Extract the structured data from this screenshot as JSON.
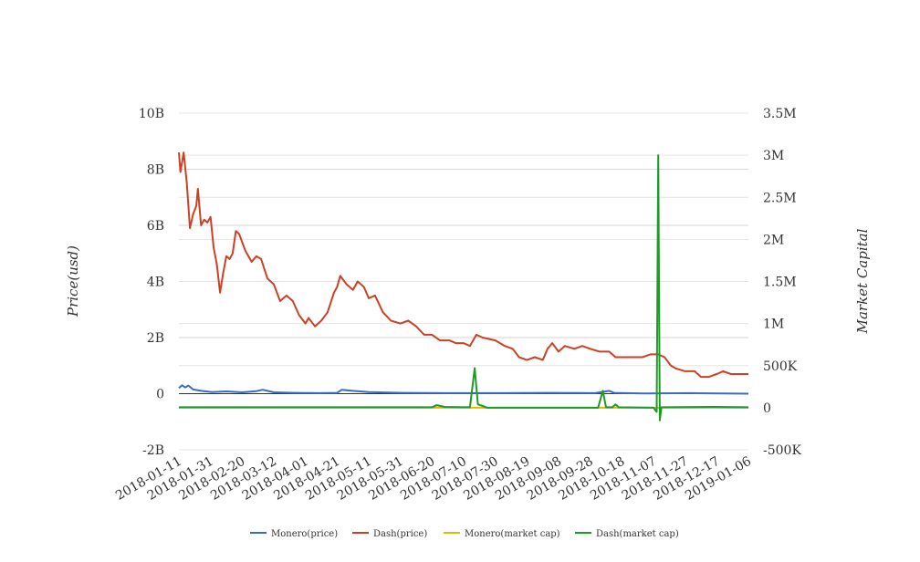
{
  "chart_data": {
    "type": "line",
    "title": "",
    "ylabel_left": "Price(usd)",
    "ylabel_right": "Market Capital",
    "grid": true,
    "legend_position": "bottom",
    "x_start": "2018-01-11",
    "x_end": "2019-01-06",
    "x_ticks": [
      "2018-01-11",
      "2018-01-31",
      "2018-02-20",
      "2018-03-12",
      "2018-04-01",
      "2018-04-21",
      "2018-05-11",
      "2018-05-31",
      "2018-06-20",
      "2018-07-10",
      "2018-07-30",
      "2018-08-19",
      "2018-09-08",
      "2018-09-28",
      "2018-10-18",
      "2018-11-07",
      "2018-11-27",
      "2018-12-17",
      "2019-01-06"
    ],
    "y_left": {
      "range": [
        -2000000000,
        10000000000
      ],
      "ticks": [
        -2000000000,
        0,
        2000000000,
        4000000000,
        6000000000,
        8000000000,
        10000000000
      ],
      "tick_labels": [
        "-2B",
        "0",
        "2B",
        "4B",
        "6B",
        "8B",
        "10B"
      ]
    },
    "y_right": {
      "range": [
        -500000,
        3500000
      ],
      "ticks": [
        -500000,
        0,
        500000,
        1000000,
        1500000,
        2000000,
        2500000,
        3000000,
        3500000
      ],
      "tick_labels": [
        "-500K",
        "0",
        "500K",
        "1M",
        "1.5M",
        "2M",
        "2.5M",
        "3M",
        "3.5M"
      ]
    },
    "series": [
      {
        "name": "Monero(price)",
        "axis": "left",
        "color": "#3b6cc4",
        "points": [
          [
            "2018-01-11",
            200000000
          ],
          [
            "2018-01-13",
            300000000
          ],
          [
            "2018-01-15",
            220000000
          ],
          [
            "2018-01-17",
            290000000
          ],
          [
            "2018-01-20",
            150000000
          ],
          [
            "2018-01-25",
            100000000
          ],
          [
            "2018-02-01",
            60000000
          ],
          [
            "2018-02-10",
            80000000
          ],
          [
            "2018-02-20",
            50000000
          ],
          [
            "2018-03-01",
            90000000
          ],
          [
            "2018-03-05",
            140000000
          ],
          [
            "2018-03-12",
            50000000
          ],
          [
            "2018-03-25",
            30000000
          ],
          [
            "2018-04-10",
            20000000
          ],
          [
            "2018-04-21",
            30000000
          ],
          [
            "2018-04-24",
            140000000
          ],
          [
            "2018-05-01",
            100000000
          ],
          [
            "2018-05-11",
            60000000
          ],
          [
            "2018-06-01",
            30000000
          ],
          [
            "2018-07-01",
            20000000
          ],
          [
            "2018-08-01",
            20000000
          ],
          [
            "2018-09-01",
            30000000
          ],
          [
            "2018-10-01",
            20000000
          ],
          [
            "2018-10-10",
            100000000
          ],
          [
            "2018-10-13",
            30000000
          ],
          [
            "2018-11-01",
            10000000
          ],
          [
            "2018-12-01",
            20000000
          ],
          [
            "2019-01-06",
            0
          ]
        ]
      },
      {
        "name": "Dash(price)",
        "axis": "left",
        "color": "#cc4125",
        "points": [
          [
            "2018-01-11",
            8600000000
          ],
          [
            "2018-01-12",
            7900000000
          ],
          [
            "2018-01-14",
            8600000000
          ],
          [
            "2018-01-16",
            7500000000
          ],
          [
            "2018-01-18",
            5900000000
          ],
          [
            "2018-01-20",
            6400000000
          ],
          [
            "2018-01-22",
            6700000000
          ],
          [
            "2018-01-23",
            7300000000
          ],
          [
            "2018-01-25",
            6000000000
          ],
          [
            "2018-01-27",
            6200000000
          ],
          [
            "2018-01-29",
            6100000000
          ],
          [
            "2018-01-31",
            6300000000
          ],
          [
            "2018-02-02",
            5200000000
          ],
          [
            "2018-02-04",
            4600000000
          ],
          [
            "2018-02-06",
            3600000000
          ],
          [
            "2018-02-08",
            4300000000
          ],
          [
            "2018-02-10",
            4900000000
          ],
          [
            "2018-02-12",
            4800000000
          ],
          [
            "2018-02-14",
            5000000000
          ],
          [
            "2018-02-16",
            5800000000
          ],
          [
            "2018-02-18",
            5700000000
          ],
          [
            "2018-02-22",
            5100000000
          ],
          [
            "2018-02-26",
            4700000000
          ],
          [
            "2018-03-01",
            4900000000
          ],
          [
            "2018-03-04",
            4800000000
          ],
          [
            "2018-03-08",
            4100000000
          ],
          [
            "2018-03-12",
            3900000000
          ],
          [
            "2018-03-16",
            3300000000
          ],
          [
            "2018-03-20",
            3500000000
          ],
          [
            "2018-03-24",
            3300000000
          ],
          [
            "2018-03-28",
            2800000000
          ],
          [
            "2018-04-01",
            2500000000
          ],
          [
            "2018-04-03",
            2700000000
          ],
          [
            "2018-04-07",
            2400000000
          ],
          [
            "2018-04-11",
            2600000000
          ],
          [
            "2018-04-15",
            2900000000
          ],
          [
            "2018-04-19",
            3600000000
          ],
          [
            "2018-04-21",
            3800000000
          ],
          [
            "2018-04-23",
            4200000000
          ],
          [
            "2018-04-27",
            3900000000
          ],
          [
            "2018-05-01",
            3700000000
          ],
          [
            "2018-05-04",
            4000000000
          ],
          [
            "2018-05-08",
            3800000000
          ],
          [
            "2018-05-11",
            3400000000
          ],
          [
            "2018-05-15",
            3500000000
          ],
          [
            "2018-05-20",
            2900000000
          ],
          [
            "2018-05-25",
            2600000000
          ],
          [
            "2018-05-31",
            2500000000
          ],
          [
            "2018-06-05",
            2600000000
          ],
          [
            "2018-06-10",
            2400000000
          ],
          [
            "2018-06-15",
            2100000000
          ],
          [
            "2018-06-20",
            2100000000
          ],
          [
            "2018-06-25",
            1900000000
          ],
          [
            "2018-07-01",
            1900000000
          ],
          [
            "2018-07-05",
            1800000000
          ],
          [
            "2018-07-10",
            1800000000
          ],
          [
            "2018-07-14",
            1700000000
          ],
          [
            "2018-07-18",
            2100000000
          ],
          [
            "2018-07-22",
            2000000000
          ],
          [
            "2018-07-30",
            1900000000
          ],
          [
            "2018-08-05",
            1700000000
          ],
          [
            "2018-08-10",
            1600000000
          ],
          [
            "2018-08-14",
            1300000000
          ],
          [
            "2018-08-19",
            1200000000
          ],
          [
            "2018-08-24",
            1300000000
          ],
          [
            "2018-08-29",
            1200000000
          ],
          [
            "2018-09-01",
            1600000000
          ],
          [
            "2018-09-04",
            1800000000
          ],
          [
            "2018-09-08",
            1500000000
          ],
          [
            "2018-09-12",
            1700000000
          ],
          [
            "2018-09-18",
            1600000000
          ],
          [
            "2018-09-23",
            1700000000
          ],
          [
            "2018-09-28",
            1600000000
          ],
          [
            "2018-10-04",
            1500000000
          ],
          [
            "2018-10-10",
            1500000000
          ],
          [
            "2018-10-14",
            1300000000
          ],
          [
            "2018-10-18",
            1300000000
          ],
          [
            "2018-10-25",
            1300000000
          ],
          [
            "2018-10-31",
            1300000000
          ],
          [
            "2018-11-05",
            1400000000
          ],
          [
            "2018-11-10",
            1400000000
          ],
          [
            "2018-11-14",
            1300000000
          ],
          [
            "2018-11-18",
            1000000000
          ],
          [
            "2018-11-21",
            900000000
          ],
          [
            "2018-11-27",
            800000000
          ],
          [
            "2018-12-03",
            800000000
          ],
          [
            "2018-12-07",
            600000000
          ],
          [
            "2018-12-12",
            600000000
          ],
          [
            "2018-12-17",
            700000000
          ],
          [
            "2018-12-21",
            800000000
          ],
          [
            "2018-12-26",
            700000000
          ],
          [
            "2019-01-01",
            700000000
          ],
          [
            "2019-01-06",
            700000000
          ]
        ]
      },
      {
        "name": "Monero(market cap)",
        "axis": "right",
        "color": "#e6b800",
        "points": [
          [
            "2018-01-11",
            0
          ],
          [
            "2019-01-06",
            0
          ]
        ]
      },
      {
        "name": "Dash(market cap)",
        "axis": "right",
        "color": "#1f9a26",
        "points": [
          [
            "2018-01-11",
            5000
          ],
          [
            "2018-06-20",
            5000
          ],
          [
            "2018-06-23",
            30000
          ],
          [
            "2018-06-28",
            10000
          ],
          [
            "2018-07-14",
            5000
          ],
          [
            "2018-07-17",
            470000
          ],
          [
            "2018-07-19",
            40000
          ],
          [
            "2018-07-22",
            20000
          ],
          [
            "2018-07-25",
            0
          ],
          [
            "2018-10-03",
            0
          ],
          [
            "2018-10-06",
            200000
          ],
          [
            "2018-10-08",
            5000
          ],
          [
            "2018-10-12",
            5000
          ],
          [
            "2018-10-14",
            40000
          ],
          [
            "2018-10-16",
            5000
          ],
          [
            "2018-11-07",
            0
          ],
          [
            "2018-11-09",
            -50000
          ],
          [
            "2018-11-10",
            3000000
          ],
          [
            "2018-11-11",
            -150000
          ],
          [
            "2018-11-12",
            5000
          ],
          [
            "2018-12-15",
            10000
          ],
          [
            "2019-01-06",
            5000
          ]
        ]
      }
    ]
  }
}
